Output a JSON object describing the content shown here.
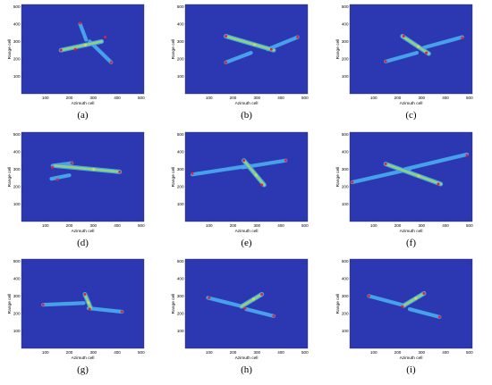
{
  "figure": {
    "colors": {
      "background": "#2b38b2",
      "target": "#49a6ee",
      "highlight": "#9bd66a",
      "bright": "#e3dc3c",
      "marker": "#e0242a"
    }
  },
  "chart_data": [
    {
      "type": "heatmap",
      "panel_label": "(a)",
      "xlabel": "Azimuth cell",
      "ylabel": "Range cell",
      "xlim": [
        0,
        512
      ],
      "ylim": [
        0,
        512
      ],
      "x_ticks": [
        100,
        200,
        300,
        400,
        500
      ],
      "y_ticks": [
        100,
        200,
        300,
        400,
        500
      ],
      "target": {
        "fuselage": [
          [
            165,
            250
          ],
          [
            335,
            300
          ]
        ],
        "wing_a": [
          [
            245,
            400
          ],
          [
            270,
            310
          ]
        ],
        "wing_b": [
          [
            285,
            300
          ],
          [
            375,
            180
          ]
        ]
      },
      "markers": [
        [
          165,
          250
        ],
        [
          245,
          405
        ],
        [
          350,
          325
        ],
        [
          375,
          180
        ],
        [
          225,
          255
        ]
      ]
    },
    {
      "type": "heatmap",
      "panel_label": "(b)",
      "xlabel": "Azimuth cell",
      "ylabel": "Range cell",
      "xlim": [
        0,
        512
      ],
      "ylim": [
        0,
        512
      ],
      "x_ticks": [
        100,
        200,
        300,
        400,
        500
      ],
      "y_ticks": [
        100,
        200,
        300,
        400,
        500
      ],
      "target": {
        "fuselage": [
          [
            170,
            330
          ],
          [
            370,
            250
          ]
        ],
        "wing_a": [
          [
            170,
            180
          ],
          [
            275,
            235
          ]
        ],
        "wing_b": [
          [
            345,
            255
          ],
          [
            470,
            325
          ]
        ]
      },
      "markers": [
        [
          170,
          330
        ],
        [
          170,
          180
        ],
        [
          360,
          255
        ],
        [
          470,
          325
        ]
      ]
    },
    {
      "type": "heatmap",
      "panel_label": "(c)",
      "xlabel": "Azimuth cell",
      "ylabel": "Range cell",
      "xlim": [
        0,
        512
      ],
      "ylim": [
        0,
        512
      ],
      "x_ticks": [
        100,
        200,
        300,
        400,
        500
      ],
      "y_ticks": [
        100,
        200,
        300,
        400,
        500
      ],
      "target": {
        "fuselage": [
          [
            220,
            330
          ],
          [
            330,
            230
          ]
        ],
        "wing_a": [
          [
            150,
            185
          ],
          [
            280,
            235
          ]
        ],
        "wing_b": [
          [
            310,
            265
          ],
          [
            470,
            325
          ]
        ]
      },
      "markers": [
        [
          225,
          330
        ],
        [
          150,
          185
        ],
        [
          320,
          235
        ],
        [
          470,
          320
        ]
      ]
    },
    {
      "type": "heatmap",
      "panel_label": "(d)",
      "xlabel": "Azimuth cell",
      "ylabel": "Range cell",
      "xlim": [
        0,
        512
      ],
      "ylim": [
        0,
        512
      ],
      "x_ticks": [
        100,
        200,
        300,
        400,
        500
      ],
      "y_ticks": [
        100,
        200,
        300,
        400,
        500
      ],
      "target": {
        "fuselage": [
          [
            140,
            320
          ],
          [
            410,
            285
          ]
        ],
        "wing_a": [
          [
            130,
            320
          ],
          [
            210,
            335
          ]
        ],
        "wing_b": [
          [
            125,
            245
          ],
          [
            200,
            265
          ]
        ]
      },
      "markers": [
        [
          130,
          310
        ],
        [
          150,
          240
        ],
        [
          410,
          285
        ],
        [
          210,
          335
        ]
      ]
    },
    {
      "type": "heatmap",
      "panel_label": "(e)",
      "xlabel": "Azimuth cell",
      "ylabel": "Range cell",
      "xlim": [
        0,
        512
      ],
      "ylim": [
        0,
        512
      ],
      "x_ticks": [
        100,
        200,
        300,
        400,
        500
      ],
      "y_ticks": [
        100,
        200,
        300,
        400,
        500
      ],
      "target": {
        "fuselage": [
          [
            245,
            350
          ],
          [
            330,
            210
          ]
        ],
        "wing_a": [
          [
            30,
            270
          ],
          [
            270,
            320
          ]
        ],
        "wing_b": [
          [
            240,
            310
          ],
          [
            420,
            350
          ]
        ]
      },
      "markers": [
        [
          30,
          275
        ],
        [
          245,
          350
        ],
        [
          320,
          210
        ],
        [
          420,
          350
        ]
      ]
    },
    {
      "type": "heatmap",
      "panel_label": "(f)",
      "xlabel": "Azimuth cell",
      "ylabel": "Range cell",
      "xlim": [
        0,
        512
      ],
      "ylim": [
        0,
        512
      ],
      "x_ticks": [
        100,
        200,
        300,
        400,
        500
      ],
      "y_ticks": [
        100,
        200,
        300,
        400,
        500
      ],
      "target": {
        "fuselage": [
          [
            150,
            330
          ],
          [
            380,
            215
          ]
        ],
        "wing_a": [
          [
            10,
            225
          ],
          [
            250,
            300
          ]
        ],
        "wing_b": [
          [
            230,
            300
          ],
          [
            490,
            385
          ]
        ]
      },
      "markers": [
        [
          10,
          225
        ],
        [
          150,
          330
        ],
        [
          370,
          215
        ],
        [
          490,
          380
        ]
      ]
    },
    {
      "type": "heatmap",
      "panel_label": "(g)",
      "xlabel": "Azimuth cell",
      "ylabel": "Range cell",
      "xlim": [
        0,
        512
      ],
      "ylim": [
        0,
        512
      ],
      "x_ticks": [
        100,
        200,
        300,
        400,
        500
      ],
      "y_ticks": [
        100,
        200,
        300,
        400,
        500
      ],
      "target": {
        "fuselage": [
          [
            265,
            310
          ],
          [
            290,
            230
          ]
        ],
        "wing_a": [
          [
            90,
            250
          ],
          [
            260,
            260
          ]
        ],
        "wing_b": [
          [
            280,
            230
          ],
          [
            420,
            210
          ]
        ]
      },
      "markers": [
        [
          90,
          250
        ],
        [
          265,
          310
        ],
        [
          285,
          225
        ],
        [
          420,
          210
        ]
      ]
    },
    {
      "type": "heatmap",
      "panel_label": "(h)",
      "xlabel": "Azimuth cell",
      "ylabel": "Range cell",
      "xlim": [
        0,
        512
      ],
      "ylim": [
        0,
        512
      ],
      "x_ticks": [
        100,
        200,
        300,
        400,
        500
      ],
      "y_ticks": [
        100,
        200,
        300,
        400,
        500
      ],
      "target": {
        "fuselage": [
          [
            235,
            240
          ],
          [
            320,
            310
          ]
        ],
        "wing_a": [
          [
            95,
            290
          ],
          [
            240,
            240
          ]
        ],
        "wing_b": [
          [
            255,
            225
          ],
          [
            370,
            185
          ]
        ]
      },
      "markers": [
        [
          100,
          290
        ],
        [
          320,
          310
        ],
        [
          250,
          230
        ],
        [
          370,
          185
        ]
      ]
    },
    {
      "type": "heatmap",
      "panel_label": "(i)",
      "xlabel": "Azimuth cell",
      "ylabel": "Range cell",
      "xlim": [
        0,
        512
      ],
      "ylim": [
        0,
        512
      ],
      "x_ticks": [
        100,
        200,
        300,
        400,
        500
      ],
      "y_ticks": [
        100,
        200,
        300,
        400,
        500
      ],
      "target": {
        "fuselage": [
          [
            225,
            245
          ],
          [
            310,
            315
          ]
        ],
        "wing_a": [
          [
            80,
            300
          ],
          [
            230,
            245
          ]
        ],
        "wing_b": [
          [
            250,
            225
          ],
          [
            375,
            180
          ]
        ]
      },
      "markers": [
        [
          80,
          300
        ],
        [
          310,
          315
        ],
        [
          220,
          240
        ],
        [
          375,
          180
        ]
      ]
    }
  ]
}
